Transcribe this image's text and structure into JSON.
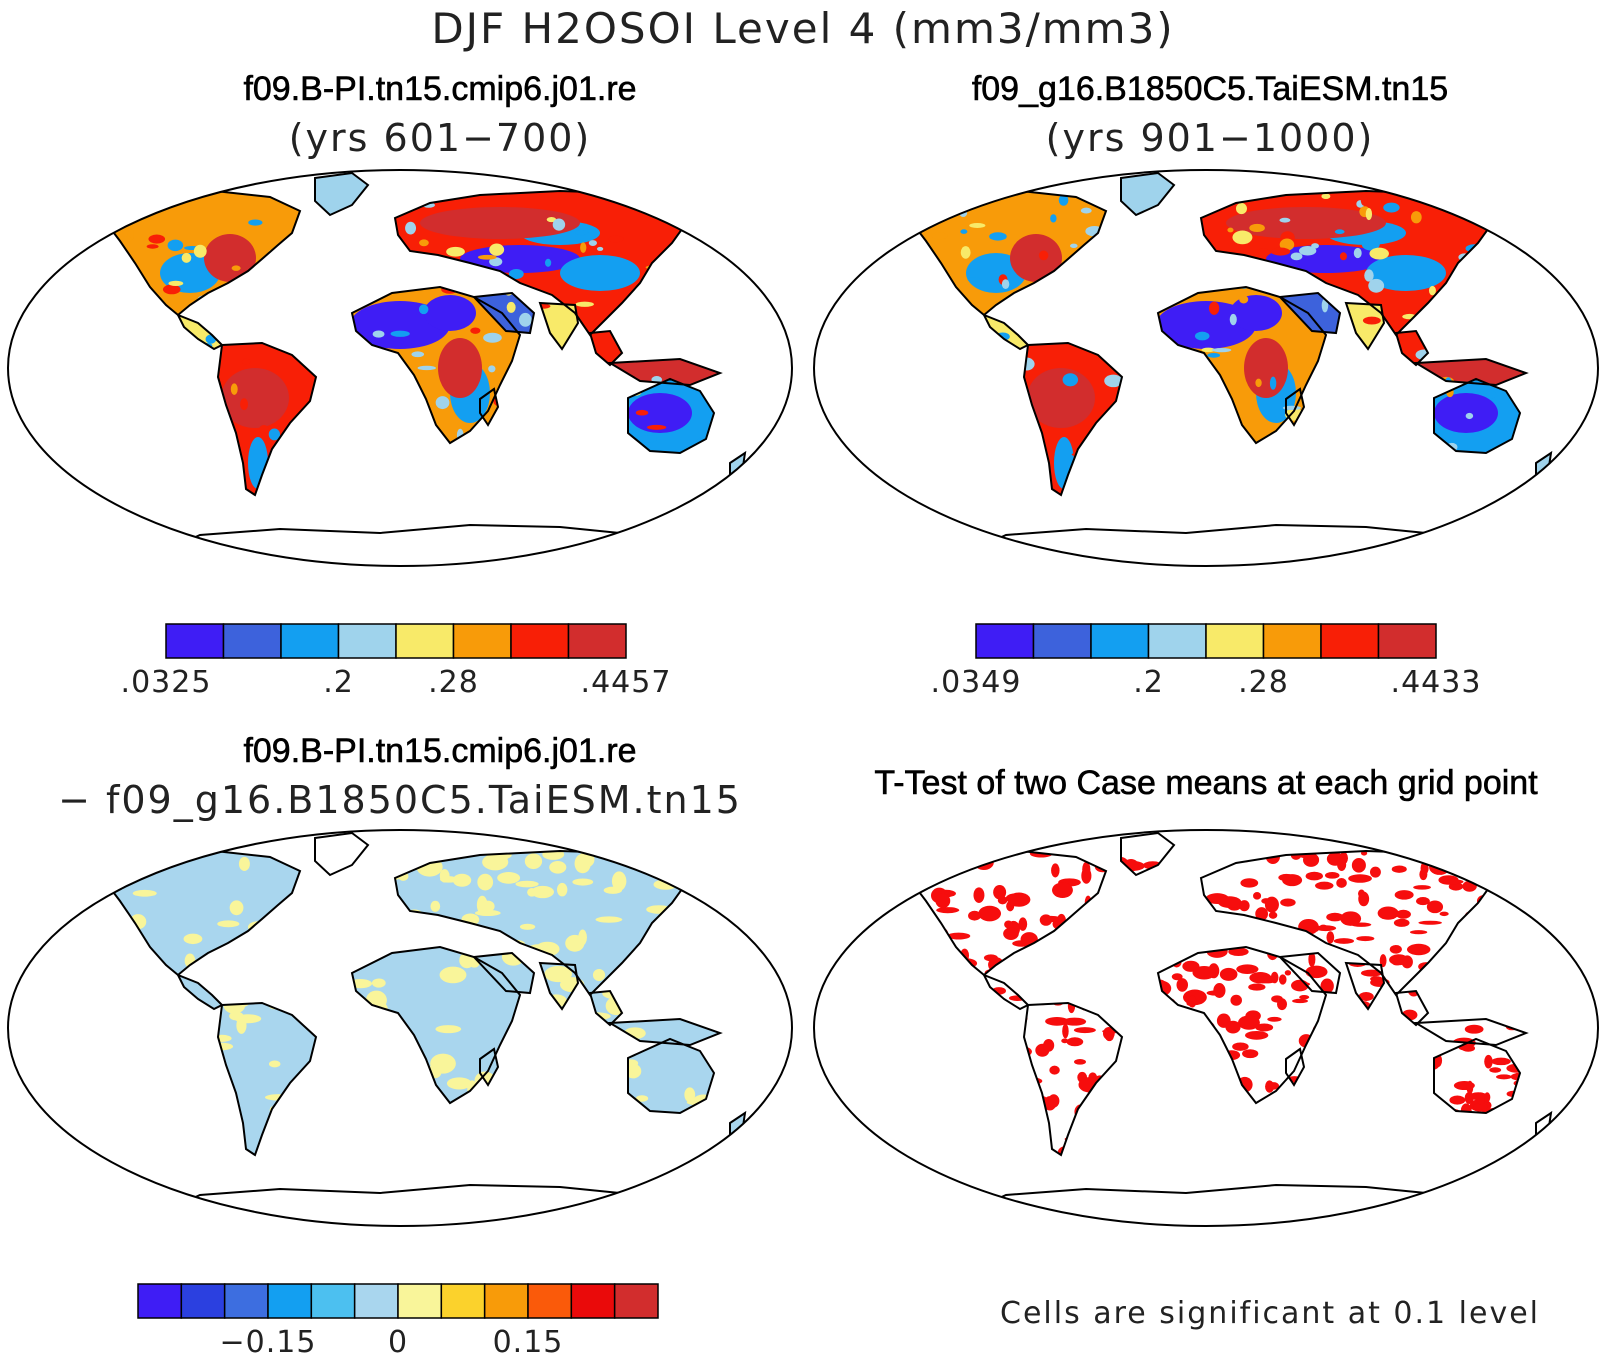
{
  "title": "DJF H2OSOI Level 4 (mm3/mm3)",
  "panels": [
    {
      "title": "f09.B-PI.tn15.cmip6.j01.re",
      "subtitle": "(yrs 601−700)",
      "colorbar": {
        "colors": [
          "#3f1df5",
          "#3d62dc",
          "#139ff1",
          "#9fd3ec",
          "#f8ea69",
          "#f89b09",
          "#f81f06",
          "#d22d2d"
        ],
        "labels": [
          ".0325",
          ".2",
          ".28",
          ".4457"
        ]
      }
    },
    {
      "title": "f09_g16.B1850C5.TaiESM.tn15",
      "subtitle": "(yrs 901−1000)",
      "colorbar": {
        "colors": [
          "#3f1df5",
          "#3d62dc",
          "#139ff1",
          "#9fd3ec",
          "#f8ea69",
          "#f89b09",
          "#f81f06",
          "#d22d2d"
        ],
        "labels": [
          ".0349",
          ".2",
          ".28",
          ".4433"
        ]
      }
    },
    {
      "title": "f09.B-PI.tn15.cmip6.j01.re",
      "subtitle": "− f09_g16.B1850C5.TaiESM.tn15",
      "colorbar": {
        "colors": [
          "#3f1df5",
          "#2b40e0",
          "#3d6ee0",
          "#139ff1",
          "#4cc0f0",
          "#a9d6ee",
          "#f9f59a",
          "#fbd22c",
          "#f89b09",
          "#fa5a0a",
          "#ea0a0a",
          "#d22d2d"
        ],
        "labels": [
          "−0.15",
          "0",
          "0.15"
        ]
      }
    },
    {
      "title": "T-Test of two Case means at each grid point",
      "note": "Cells are significant at 0.1 level"
    }
  ]
}
